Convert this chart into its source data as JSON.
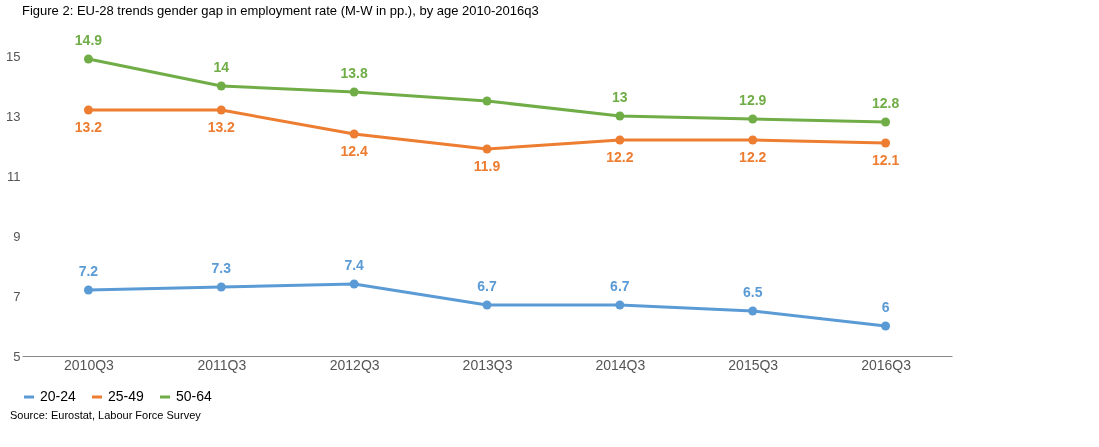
{
  "chart_data": {
    "type": "line",
    "title": "Figure 2: EU-28 trends gender gap in employment rate (M-W in pp.), by age 2010-2016q3",
    "categories": [
      "2010Q3",
      "2011Q3",
      "2012Q3",
      "2013Q3",
      "2014Q3",
      "2015Q3",
      "2016Q3"
    ],
    "series": [
      {
        "name": "20-24",
        "color": "#5b9bd5",
        "values": [
          7.2,
          7.3,
          7.4,
          6.7,
          6.7,
          6.5,
          6
        ],
        "value_labels": [
          "7.2",
          "7.3",
          "7.4",
          "6.7",
          "6.7",
          "6.5",
          "6"
        ]
      },
      {
        "name": "25-49",
        "color": "#ed7d31",
        "values": [
          13.2,
          13.2,
          12.4,
          11.9,
          12.2,
          12.2,
          12.1
        ],
        "value_labels": [
          "13.2",
          "13.2",
          "12.4",
          "11.9",
          "12.2",
          "12.2",
          "12.1"
        ]
      },
      {
        "name": "50-64",
        "color": "#70ad47",
        "values": [
          14.9,
          14,
          13.8,
          13.5,
          13,
          12.9,
          12.8
        ],
        "value_labels": [
          "14.9",
          "14",
          "13.8",
          null,
          "13",
          "12.9",
          "12.8"
        ]
      }
    ],
    "ylim": [
      5,
      15
    ],
    "yticks": [
      5,
      7,
      9,
      11,
      13,
      15
    ],
    "grid": false,
    "legend": "bottom",
    "marker": "circle",
    "line_style": "solid",
    "annotations": [
      "Source: Eurostat, Labour Force Survey"
    ]
  }
}
